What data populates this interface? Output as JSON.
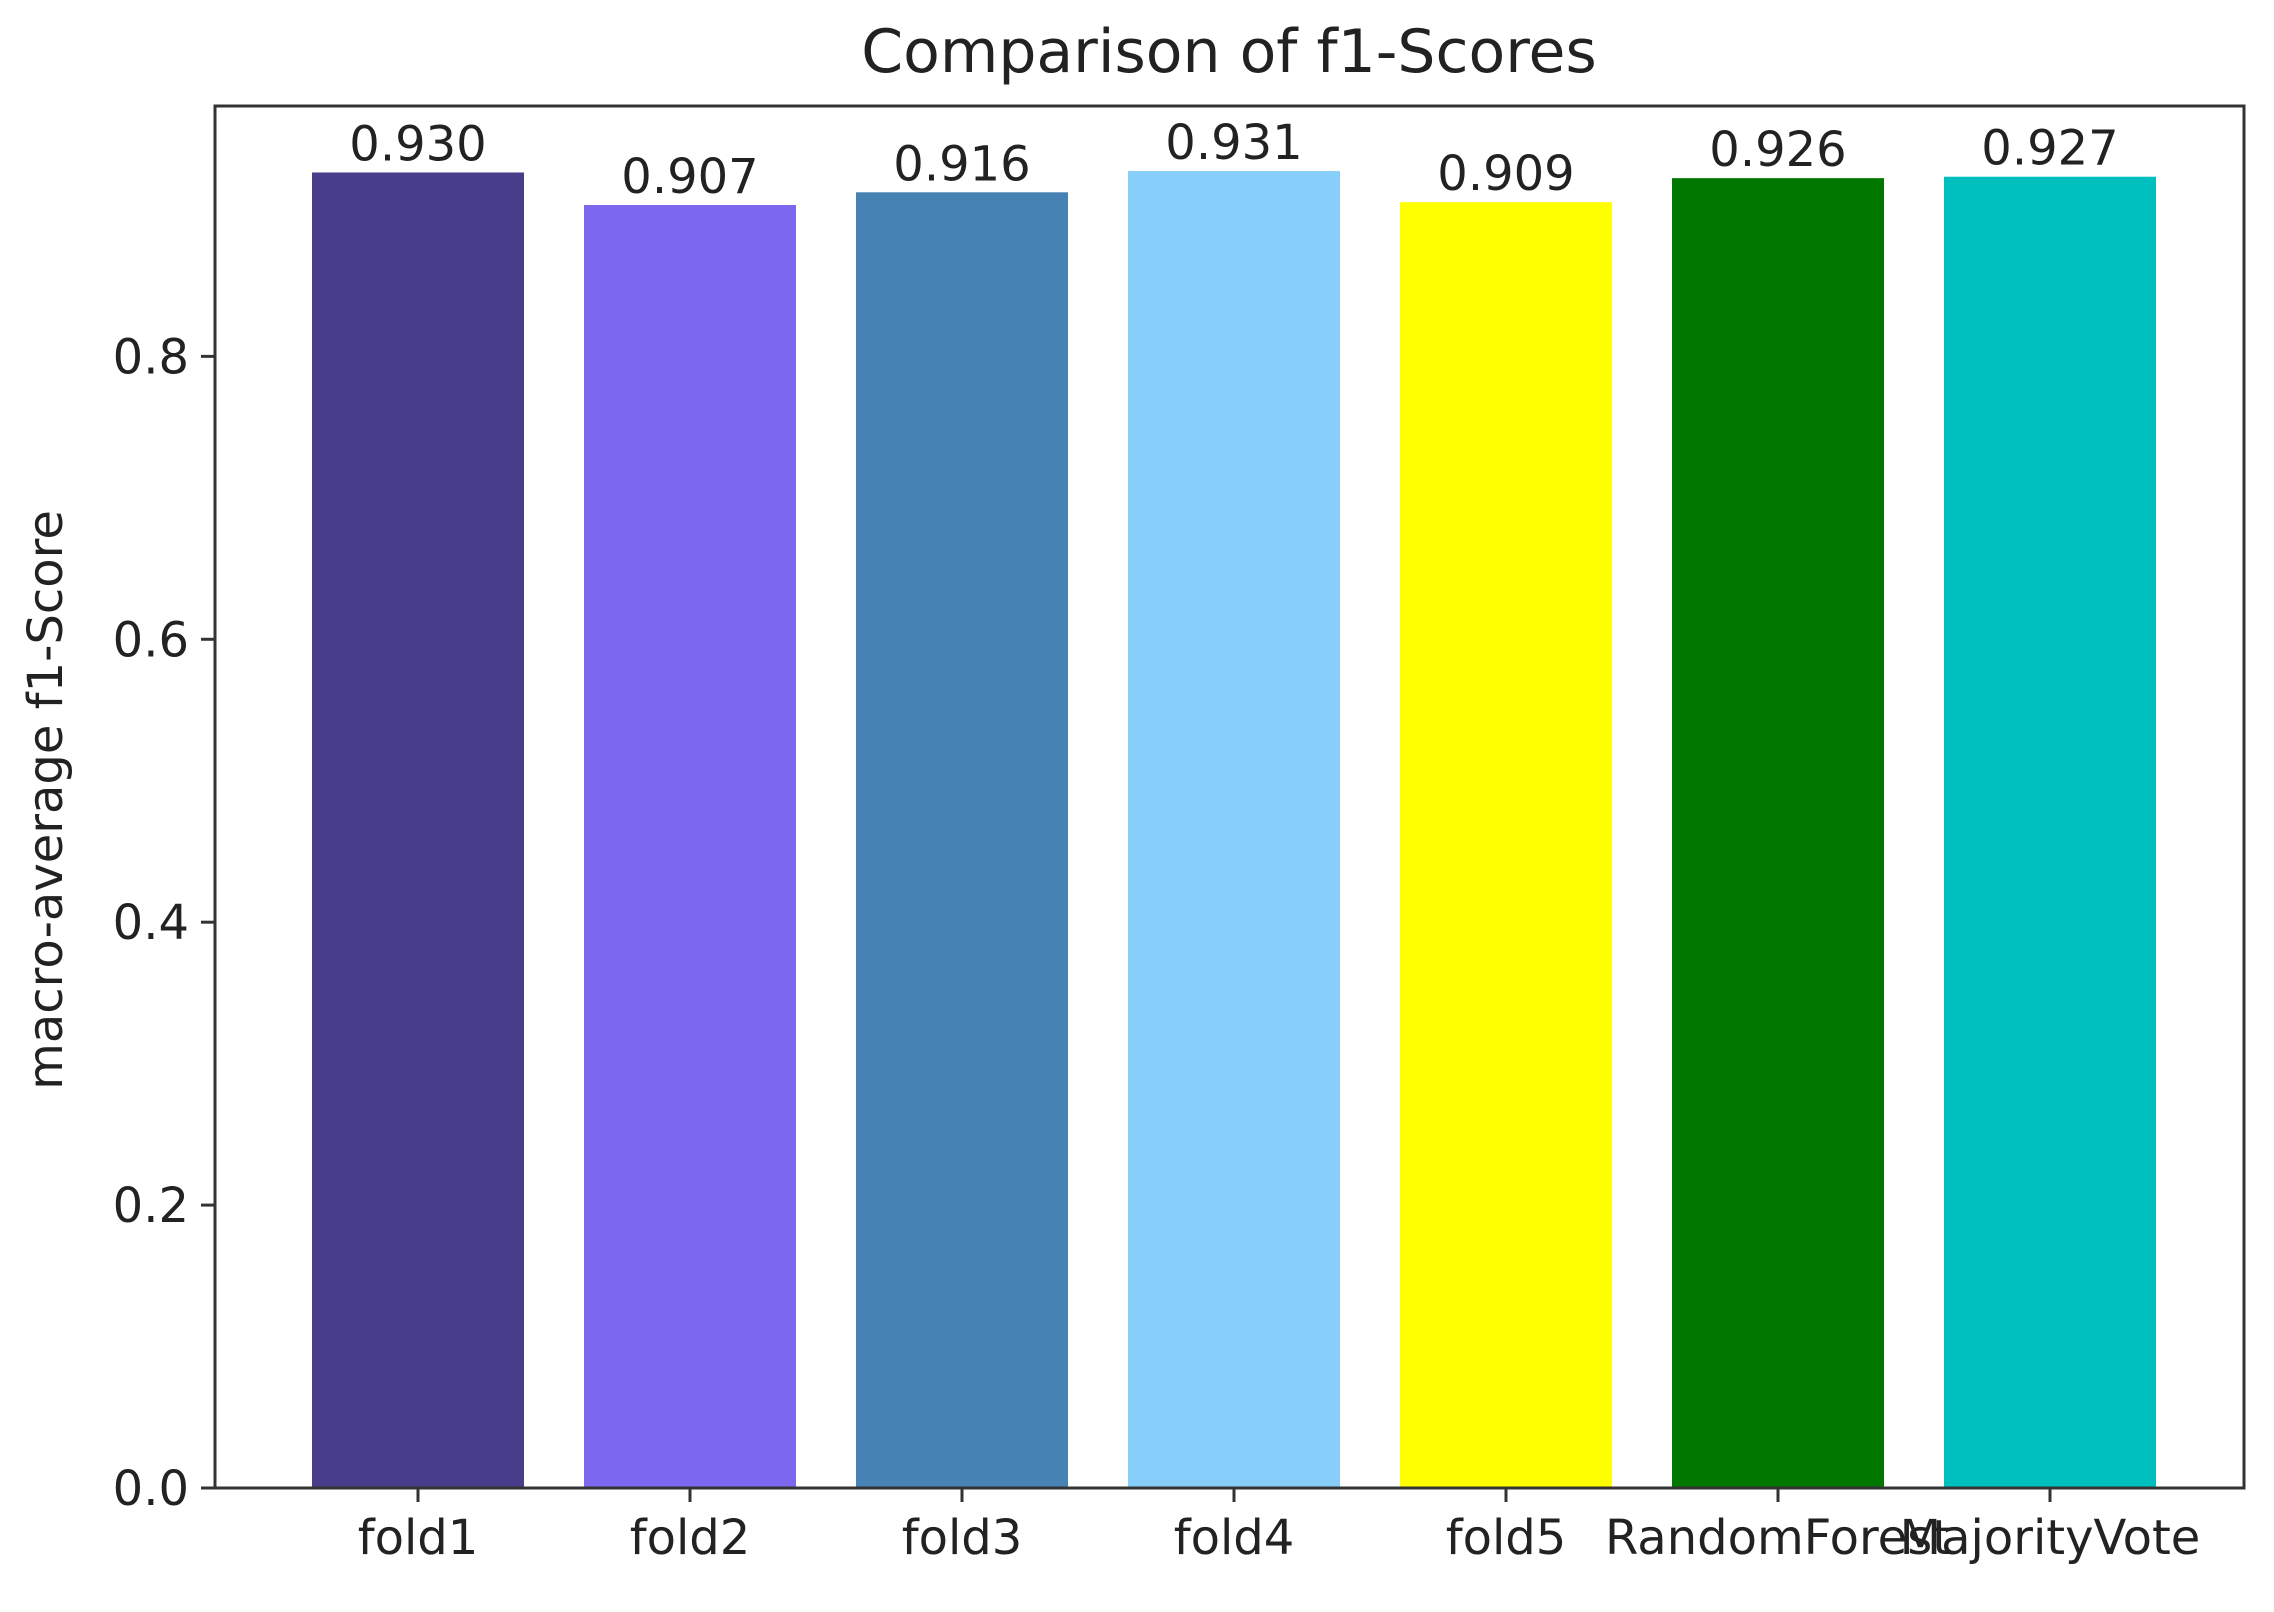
{
  "chart_data": {
    "type": "bar",
    "title": "Comparison of f1-Scores",
    "xlabel": "",
    "ylabel": "macro-average f1-Score",
    "categories": [
      "fold1",
      "fold2",
      "fold3",
      "fold4",
      "fold5",
      "RandomForest",
      "MajorityVote"
    ],
    "values": [
      0.93,
      0.907,
      0.916,
      0.931,
      0.909,
      0.926,
      0.927
    ],
    "value_labels": [
      "0.930",
      "0.907",
      "0.916",
      "0.931",
      "0.909",
      "0.926",
      "0.927"
    ],
    "colors": [
      "#483d8b",
      "#7b68ee",
      "#4682b4",
      "#87cefa",
      "#ffff00",
      "#007800",
      "#00bfbf"
    ],
    "ylim": [
      0,
      0.977
    ],
    "yticks": [
      0.0,
      0.2,
      0.4,
      0.6,
      0.8
    ],
    "ytick_labels": [
      "0.0",
      "0.2",
      "0.4",
      "0.6",
      "0.8"
    ],
    "grid": false,
    "legend": "none"
  }
}
